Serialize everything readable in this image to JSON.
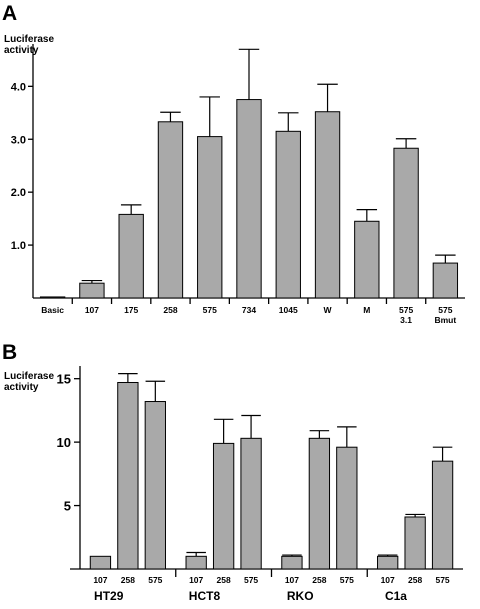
{
  "chart_data": [
    {
      "type": "bar",
      "panel": "A",
      "ylabel": "Luciferase\nactivity",
      "ylim": [
        0,
        4.8
      ],
      "yticks": [
        "1.0",
        "2.0",
        "3.0",
        "4.0"
      ],
      "ytick_values": [
        1,
        2,
        3,
        4
      ],
      "categories": [
        "Basic",
        "107",
        "175",
        "258",
        "575",
        "734",
        "1045",
        "W",
        "M",
        "575\n3.1",
        "575\nBmut"
      ],
      "values": [
        0.02,
        0.28,
        1.58,
        3.33,
        3.05,
        3.75,
        3.15,
        3.52,
        1.45,
        2.83,
        0.66
      ],
      "errors": [
        0.0,
        0.05,
        0.18,
        0.18,
        0.75,
        0.95,
        0.35,
        0.52,
        0.22,
        0.18,
        0.15
      ],
      "grid": false,
      "legend": "none"
    },
    {
      "type": "bar",
      "panel": "B",
      "ylabel": "Luciferase\nactivity",
      "ylim": [
        0,
        16
      ],
      "yticks": [
        "5",
        "10",
        "15"
      ],
      "ytick_values": [
        5,
        10,
        15
      ],
      "groups": [
        {
          "name": "HT29",
          "categories": [
            "107",
            "258",
            "575"
          ],
          "values": [
            1.0,
            14.7,
            13.2
          ],
          "errors": [
            0.0,
            0.7,
            1.6
          ]
        },
        {
          "name": "HCT8",
          "categories": [
            "107",
            "258",
            "575"
          ],
          "values": [
            1.0,
            9.9,
            10.3
          ],
          "errors": [
            0.3,
            1.9,
            1.8
          ]
        },
        {
          "name": "RKO",
          "categories": [
            "107",
            "258",
            "575"
          ],
          "values": [
            1.0,
            10.3,
            9.6
          ],
          "errors": [
            0.1,
            0.6,
            1.6
          ]
        },
        {
          "name": "C1a",
          "categories": [
            "107",
            "258",
            "575"
          ],
          "values": [
            1.0,
            4.1,
            8.5
          ],
          "errors": [
            0.1,
            0.2,
            1.1
          ]
        }
      ],
      "grid": false,
      "legend": "none"
    }
  ]
}
